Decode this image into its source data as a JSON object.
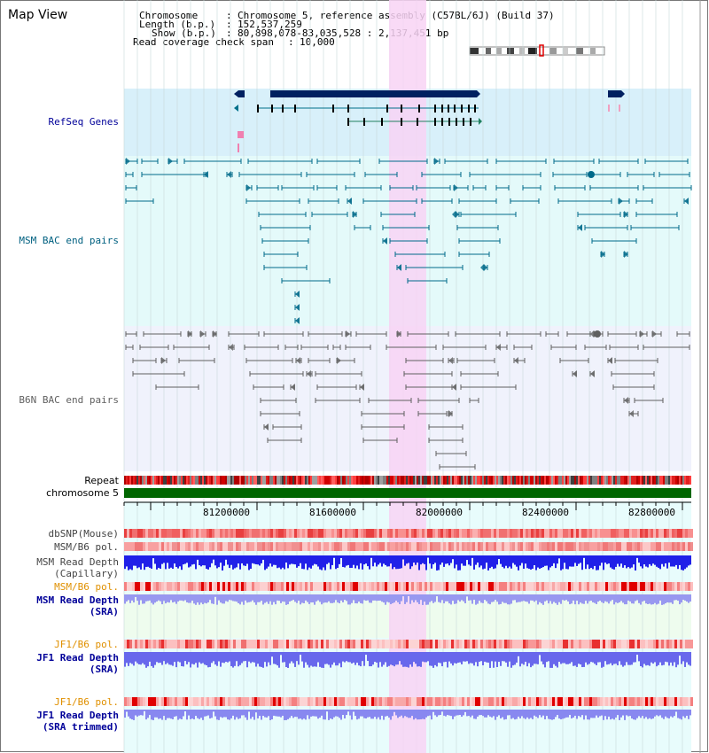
{
  "title": "Map View",
  "info": {
    "chromosome_key": "Chromosome",
    "chromosome_value": "Chromosome 5, reference assembly (C57BL/6J) (Build 37)",
    "length_key": "Length (b.p.)",
    "length_value": "152,537,259",
    "show_key": "Show (b.p.)",
    "show_value": "80,898,078-83,035,528 : 2,137,451 bp",
    "coverage_key": "Read coverage check span",
    "coverage_value": "10,000"
  },
  "tracks": {
    "refseq": "RefSeq Genes",
    "msm_bac": "MSM BAC end pairs",
    "b6n_bac": "B6N BAC end pairs",
    "repeat": "Repeat",
    "chromosome": "chromosome 5",
    "dbsnp": "dbSNP(Mouse)",
    "msm_b6_pol": "MSM/B6 pol.",
    "msm_depth_cap_1": "MSM Read Depth",
    "msm_depth_cap_2": "(Capillary)",
    "msm_b6_pol_2": "MSM/B6 pol.",
    "msm_depth_sra_1": "MSM Read Depth",
    "msm_depth_sra_2": "(SRA)",
    "jf1_pol_1": "JF1/B6 pol.",
    "jf1_depth_sra_1": "JF1 Read Depth",
    "jf1_depth_sra_2": "(SRA)",
    "jf1_pol_2": "JF1/B6 pol.",
    "jf1_depth_trim_1": "JF1 Read Depth",
    "jf1_depth_trim_2": "(SRA trimmed)"
  },
  "ruler": {
    "ticks": [
      "81200000",
      "81600000",
      "82000000",
      "82400000",
      "82800000"
    ]
  },
  "colors": {
    "refseq_bg": "#d8f0fa",
    "msm_bg": "#e4fafa",
    "b6n_bg": "#f0f2fc",
    "highlight": "#f8d4f4",
    "gene": "#002060",
    "msm_feature": "#006a8a",
    "b6n_feature": "#606060",
    "label_blue": "#000099",
    "label_teal": "#006080",
    "label_orange": "#e09000",
    "chrom_bar": "#006600"
  }
}
